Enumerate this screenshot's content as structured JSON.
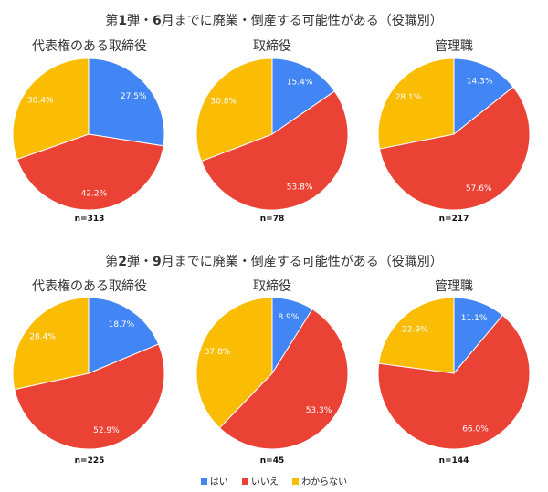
{
  "sections": [
    {
      "title_prefix": "第",
      "title_num": "1",
      "title_mid": "弾・",
      "title_month": "6",
      "title_suffix": "月までに廃業・倒産する可能性がある（役職別）"
    },
    {
      "title_prefix": "第",
      "title_num": "2",
      "title_mid": "弾・",
      "title_month": "9",
      "title_suffix": "月までに廃業・倒産する可能性がある（役職別）"
    }
  ],
  "legend": [
    {
      "label": "はい",
      "color": "#4285f4"
    },
    {
      "label": "いいえ",
      "color": "#ea4335"
    },
    {
      "label": "わからない",
      "color": "#fbbc04"
    }
  ],
  "chart_data": [
    {
      "type": "pie",
      "title": "代表権のある取締役",
      "n": "n=313",
      "categories": [
        "はい",
        "いいえ",
        "わからない"
      ],
      "values": [
        27.5,
        42.2,
        30.4
      ],
      "labels": [
        "27.5%",
        "42.2%",
        "30.4%"
      ]
    },
    {
      "type": "pie",
      "title": "取締役",
      "n": "n=78",
      "categories": [
        "はい",
        "いいえ",
        "わからない"
      ],
      "values": [
        15.4,
        53.8,
        30.8
      ],
      "labels": [
        "15.4%",
        "53.8%",
        "30.8%"
      ]
    },
    {
      "type": "pie",
      "title": "管理職",
      "n": "n=217",
      "categories": [
        "はい",
        "いいえ",
        "わからない"
      ],
      "values": [
        14.3,
        57.6,
        28.1
      ],
      "labels": [
        "14.3%",
        "57.6%",
        "28.1%"
      ]
    },
    {
      "type": "pie",
      "title": "代表権のある取締役",
      "n": "n=225",
      "categories": [
        "はい",
        "いいえ",
        "わからない"
      ],
      "values": [
        18.7,
        52.9,
        28.4
      ],
      "labels": [
        "18.7%",
        "52.9%",
        "28.4%"
      ]
    },
    {
      "type": "pie",
      "title": "取締役",
      "n": "n=45",
      "categories": [
        "はい",
        "いいえ",
        "わからない"
      ],
      "values": [
        8.9,
        53.3,
        37.8
      ],
      "labels": [
        "8.9%",
        "53.3%",
        "37.8%"
      ]
    },
    {
      "type": "pie",
      "title": "管理職",
      "n": "n=144",
      "categories": [
        "はい",
        "いいえ",
        "わからない"
      ],
      "values": [
        11.1,
        66.0,
        22.9
      ],
      "labels": [
        "11.1%",
        "66.0%",
        "22.9%"
      ]
    }
  ]
}
